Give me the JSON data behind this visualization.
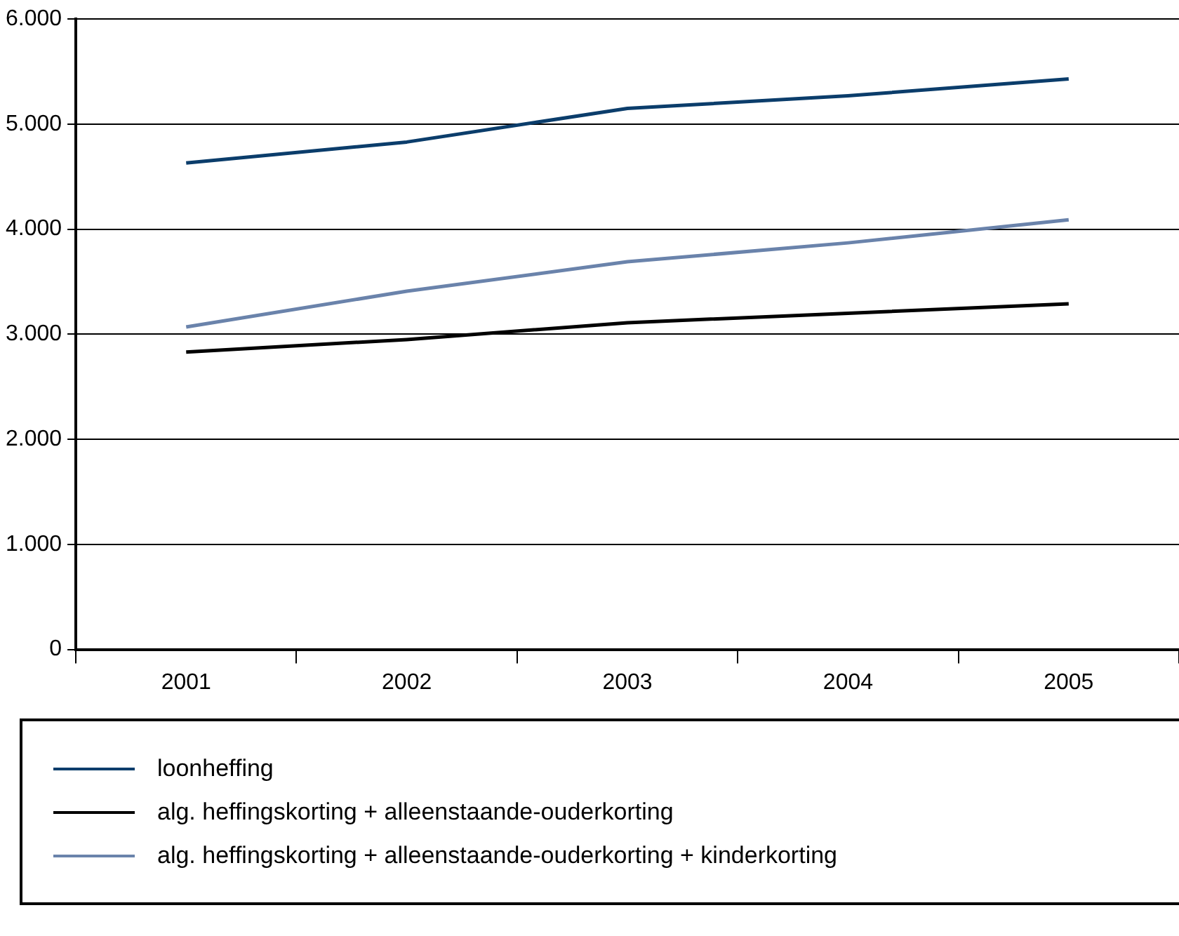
{
  "chart_data": {
    "type": "line",
    "categories": [
      "2001",
      "2002",
      "2003",
      "2004",
      "2005"
    ],
    "series": [
      {
        "name": "loonheffing",
        "color": "#0b3d6b",
        "values": [
          4630,
          4830,
          5150,
          5270,
          5430
        ]
      },
      {
        "name": "alg. heffingskorting + alleenstaande-ouderkorting",
        "color": "#000000",
        "values": [
          2830,
          2950,
          3110,
          3200,
          3290
        ]
      },
      {
        "name": "alg. heffingskorting + alleenstaande-ouderkorting + kinderkorting",
        "color": "#6a83ab",
        "values": [
          3070,
          3410,
          3690,
          3870,
          4090
        ]
      }
    ],
    "ylim": [
      0,
      6000
    ],
    "yticks": [
      {
        "value": 0,
        "label": "0"
      },
      {
        "value": 1000,
        "label": "1.000"
      },
      {
        "value": 2000,
        "label": "2.000"
      },
      {
        "value": 3000,
        "label": "3.000"
      },
      {
        "value": 4000,
        "label": "4.000"
      },
      {
        "value": 5000,
        "label": "5.000"
      },
      {
        "value": 6000,
        "label": "6.000"
      }
    ],
    "grid": "y",
    "legend": "bottom",
    "marker": "none",
    "line_style": "solid"
  }
}
